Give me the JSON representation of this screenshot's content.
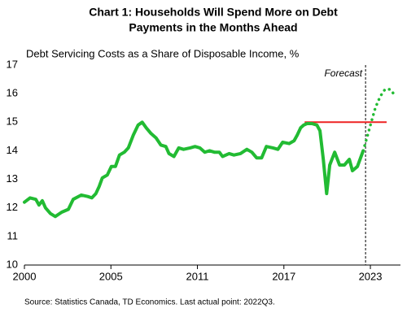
{
  "chart_data": {
    "type": "line",
    "title": [
      "Chart 1: Households Will Spend More on Debt",
      "Payments in the Months Ahead"
    ],
    "subtitle": "Debt Servicing Costs as a Share of Disposable Income, %",
    "source": "Source: Statistics Canada, TD Economics.  Last actual point:  2022Q3.",
    "xlim": [
      2000,
      2025
    ],
    "xticks": [
      {
        "value": 2000,
        "label": "2000"
      },
      {
        "value": 2005.75,
        "label": "2005"
      },
      {
        "value": 2011.5,
        "label": "2011"
      },
      {
        "value": 2017.25,
        "label": "2017"
      },
      {
        "value": 2023,
        "label": "2023"
      }
    ],
    "ylim": [
      10,
      17
    ],
    "yticks": [
      10,
      11,
      12,
      13,
      14,
      15,
      16,
      17
    ],
    "series": [
      {
        "color": "#22bb33",
        "style": "solid",
        "x": [
          2000,
          2000.38,
          2000.76,
          2000.97,
          2001.19,
          2001.4,
          2001.73,
          2002.05,
          2002.48,
          2002.92,
          2003.24,
          2003.78,
          2004.21,
          2004.48,
          2004.75,
          2004.97,
          2005.18,
          2005.51,
          2005.78,
          2006.05,
          2006.32,
          2006.64,
          2006.91,
          2007.24,
          2007.56,
          2007.83,
          2008.1,
          2008.42,
          2008.75,
          2009.07,
          2009.4,
          2009.61,
          2009.94,
          2010.26,
          2010.58,
          2011.02,
          2011.34,
          2011.66,
          2011.99,
          2012.31,
          2012.63,
          2012.96,
          2013.17,
          2013.61,
          2013.93,
          2014.36,
          2014.79,
          2015.12,
          2015.44,
          2015.77,
          2016.09,
          2016.52,
          2016.85,
          2017.17,
          2017.6,
          2017.93,
          2018.14,
          2018.36,
          2018.57,
          2018.79,
          2019.11,
          2019.44,
          2019.65,
          2019.87,
          2020.09,
          2020.3,
          2020.63,
          2020.95,
          2021.27,
          2021.6,
          2021.81,
          2022.14,
          2022.52
        ],
        "values": [
          12.2,
          12.35,
          12.3,
          12.1,
          12.25,
          12.0,
          11.8,
          11.7,
          11.85,
          11.95,
          12.3,
          12.45,
          12.4,
          12.35,
          12.5,
          12.75,
          13.05,
          13.15,
          13.45,
          13.45,
          13.85,
          13.95,
          14.1,
          14.55,
          14.9,
          15.0,
          14.8,
          14.6,
          14.45,
          14.2,
          14.15,
          13.9,
          13.8,
          14.1,
          14.05,
          14.1,
          14.15,
          14.1,
          13.95,
          14.0,
          13.95,
          13.95,
          13.8,
          13.9,
          13.85,
          13.9,
          14.05,
          13.95,
          13.75,
          13.75,
          14.15,
          14.1,
          14.05,
          14.3,
          14.25,
          14.35,
          14.55,
          14.8,
          14.9,
          14.95,
          14.95,
          14.9,
          14.7,
          13.7,
          12.5,
          13.5,
          13.95,
          13.5,
          13.5,
          13.7,
          13.3,
          13.45,
          14.0
        ]
      },
      {
        "color": "#22bb33",
        "style": "dotted",
        "x": [
          2022.52,
          2022.79,
          2023.06,
          2023.33,
          2023.65,
          2023.97,
          2024.3,
          2024.62
        ],
        "values": [
          14.0,
          14.5,
          15.0,
          15.5,
          15.9,
          16.15,
          16.15,
          15.95
        ]
      }
    ],
    "reference_line": {
      "value": 15,
      "x": [
        2018.63,
        2024.08
      ],
      "color": "#ee2222"
    },
    "forecast_line": {
      "x": 2022.68,
      "label": "Forecast"
    }
  }
}
